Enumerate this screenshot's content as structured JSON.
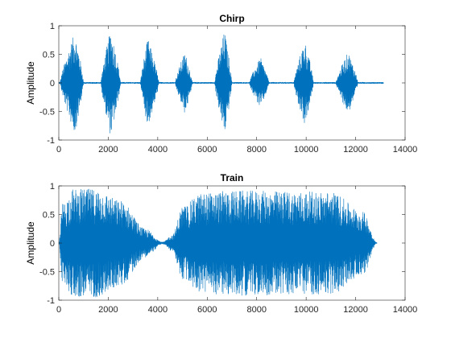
{
  "colors": {
    "line": "#0072BD",
    "axis": "#262626",
    "background": "#ffffff"
  },
  "chart_data": [
    {
      "type": "line",
      "title": "Chirp",
      "xlabel": "",
      "ylabel": "Amplitude",
      "xlim": [
        0,
        14000
      ],
      "ylim": [
        -1,
        1
      ],
      "x_ticks": [
        0,
        2000,
        4000,
        6000,
        8000,
        10000,
        12000,
        14000
      ],
      "y_ticks": [
        -1,
        -0.5,
        0,
        0.5,
        1
      ],
      "x_tick_labels": [
        "0",
        "2000",
        "4000",
        "6000",
        "8000",
        "10000",
        "12000",
        "14000"
      ],
      "y_tick_labels": [
        "-1",
        "-0.5",
        "0",
        "0.5",
        "1"
      ],
      "grid": false,
      "n_samples": 13129,
      "bursts": [
        {
          "start": 50,
          "peak": 650,
          "end": 1000,
          "peak_amplitude": 0.9
        },
        {
          "start": 1700,
          "peak": 2100,
          "end": 2500,
          "peak_amplitude": 0.95
        },
        {
          "start": 3300,
          "peak": 3600,
          "end": 4050,
          "peak_amplitude": 0.78
        },
        {
          "start": 4700,
          "peak": 5100,
          "end": 5400,
          "peak_amplitude": 0.55
        },
        {
          "start": 6300,
          "peak": 6700,
          "end": 7000,
          "peak_amplitude": 0.92
        },
        {
          "start": 7700,
          "peak": 8150,
          "end": 8500,
          "peak_amplitude": 0.45
        },
        {
          "start": 9500,
          "peak": 9950,
          "end": 10300,
          "peak_amplitude": 0.75
        },
        {
          "start": 11200,
          "peak": 11700,
          "end": 12100,
          "peak_amplitude": 0.55
        }
      ]
    },
    {
      "type": "line",
      "title": "Train",
      "xlabel": "",
      "ylabel": "Amplitude",
      "xlim": [
        0,
        14000
      ],
      "ylim": [
        -1,
        1
      ],
      "x_ticks": [
        0,
        2000,
        4000,
        6000,
        8000,
        10000,
        12000,
        14000
      ],
      "y_ticks": [
        -1,
        -0.5,
        0,
        0.5,
        1
      ],
      "x_tick_labels": [
        "0",
        "2000",
        "4000",
        "6000",
        "8000",
        "10000",
        "12000",
        "14000"
      ],
      "y_tick_labels": [
        "-1",
        "-0.5",
        "0",
        "0.5",
        "1"
      ],
      "grid": false,
      "n_samples": 12880,
      "envelope": [
        {
          "x": 0,
          "amplitude": 0.0
        },
        {
          "x": 150,
          "amplitude": 0.7
        },
        {
          "x": 600,
          "amplitude": 0.95
        },
        {
          "x": 1500,
          "amplitude": 0.95
        },
        {
          "x": 2500,
          "amplitude": 0.75
        },
        {
          "x": 3500,
          "amplitude": 0.25
        },
        {
          "x": 4200,
          "amplitude": 0.02
        },
        {
          "x": 4600,
          "amplitude": 0.15
        },
        {
          "x": 5000,
          "amplitude": 0.65
        },
        {
          "x": 5800,
          "amplitude": 0.88
        },
        {
          "x": 7000,
          "amplitude": 0.92
        },
        {
          "x": 11000,
          "amplitude": 0.9
        },
        {
          "x": 12300,
          "amplitude": 0.55
        },
        {
          "x": 12880,
          "amplitude": 0.0
        }
      ]
    }
  ]
}
